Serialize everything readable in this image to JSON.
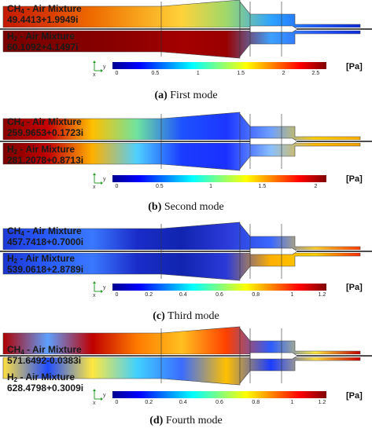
{
  "modes": [
    {
      "key": "a",
      "caption_letter": "(a)",
      "caption_text": " First mode",
      "ch4_label": "CH4 - Air Mixture",
      "ch4_value": "49.4413+1.9949i",
      "h2_label": "H2 - Air Mixture",
      "h2_value": "60.1092+4.1497i",
      "unit": "[Pa]",
      "ticks": [
        "0",
        "0.5",
        "1",
        "1.5",
        "2",
        "2.5"
      ],
      "axis_y": "y",
      "axis_x": "x"
    },
    {
      "key": "b",
      "caption_letter": "(b)",
      "caption_text": " Second mode",
      "ch4_label": "CH4 - Air Mixture",
      "ch4_value": "259.9653+0.1723i",
      "h2_label": "H2 - Air Mixture",
      "h2_value": "281.2078+0.8713i",
      "unit": "[Pa]",
      "ticks": [
        "0",
        "0.5",
        "1",
        "1.5",
        "2"
      ],
      "axis_y": "y",
      "axis_x": "x"
    },
    {
      "key": "c",
      "caption_letter": "(c)",
      "caption_text": " Third mode",
      "ch4_label": "CH4 - Air Mixture",
      "ch4_value": "457.7418+0.7000i",
      "h2_label": "H2 - Air Mixture",
      "h2_value": "539.0618+2.8789i",
      "unit": "[Pa]",
      "ticks": [
        "0",
        "0.2",
        "0.4",
        "0.6",
        "0.8",
        "1",
        "1.2"
      ],
      "axis_y": "y",
      "axis_x": "x"
    },
    {
      "key": "d",
      "caption_letter": "(d)",
      "caption_text": " Fourth mode",
      "ch4_label": "CH4 - Air Mixture",
      "ch4_value": "571.6492-0.0383i",
      "h2_label": "H2 - Air Mixture",
      "h2_value": "628.4798+0.3009i",
      "unit": "[Pa]",
      "ticks": [
        "0",
        "0.2",
        "0.4",
        "0.6",
        "0.8",
        "1",
        "1.2"
      ],
      "axis_y": "y",
      "axis_x": "x"
    }
  ],
  "colormap": [
    "#00008f",
    "#0000ff",
    "#0080ff",
    "#00ffff",
    "#80ff80",
    "#ffff00",
    "#ff8000",
    "#ff0000",
    "#800000"
  ]
}
